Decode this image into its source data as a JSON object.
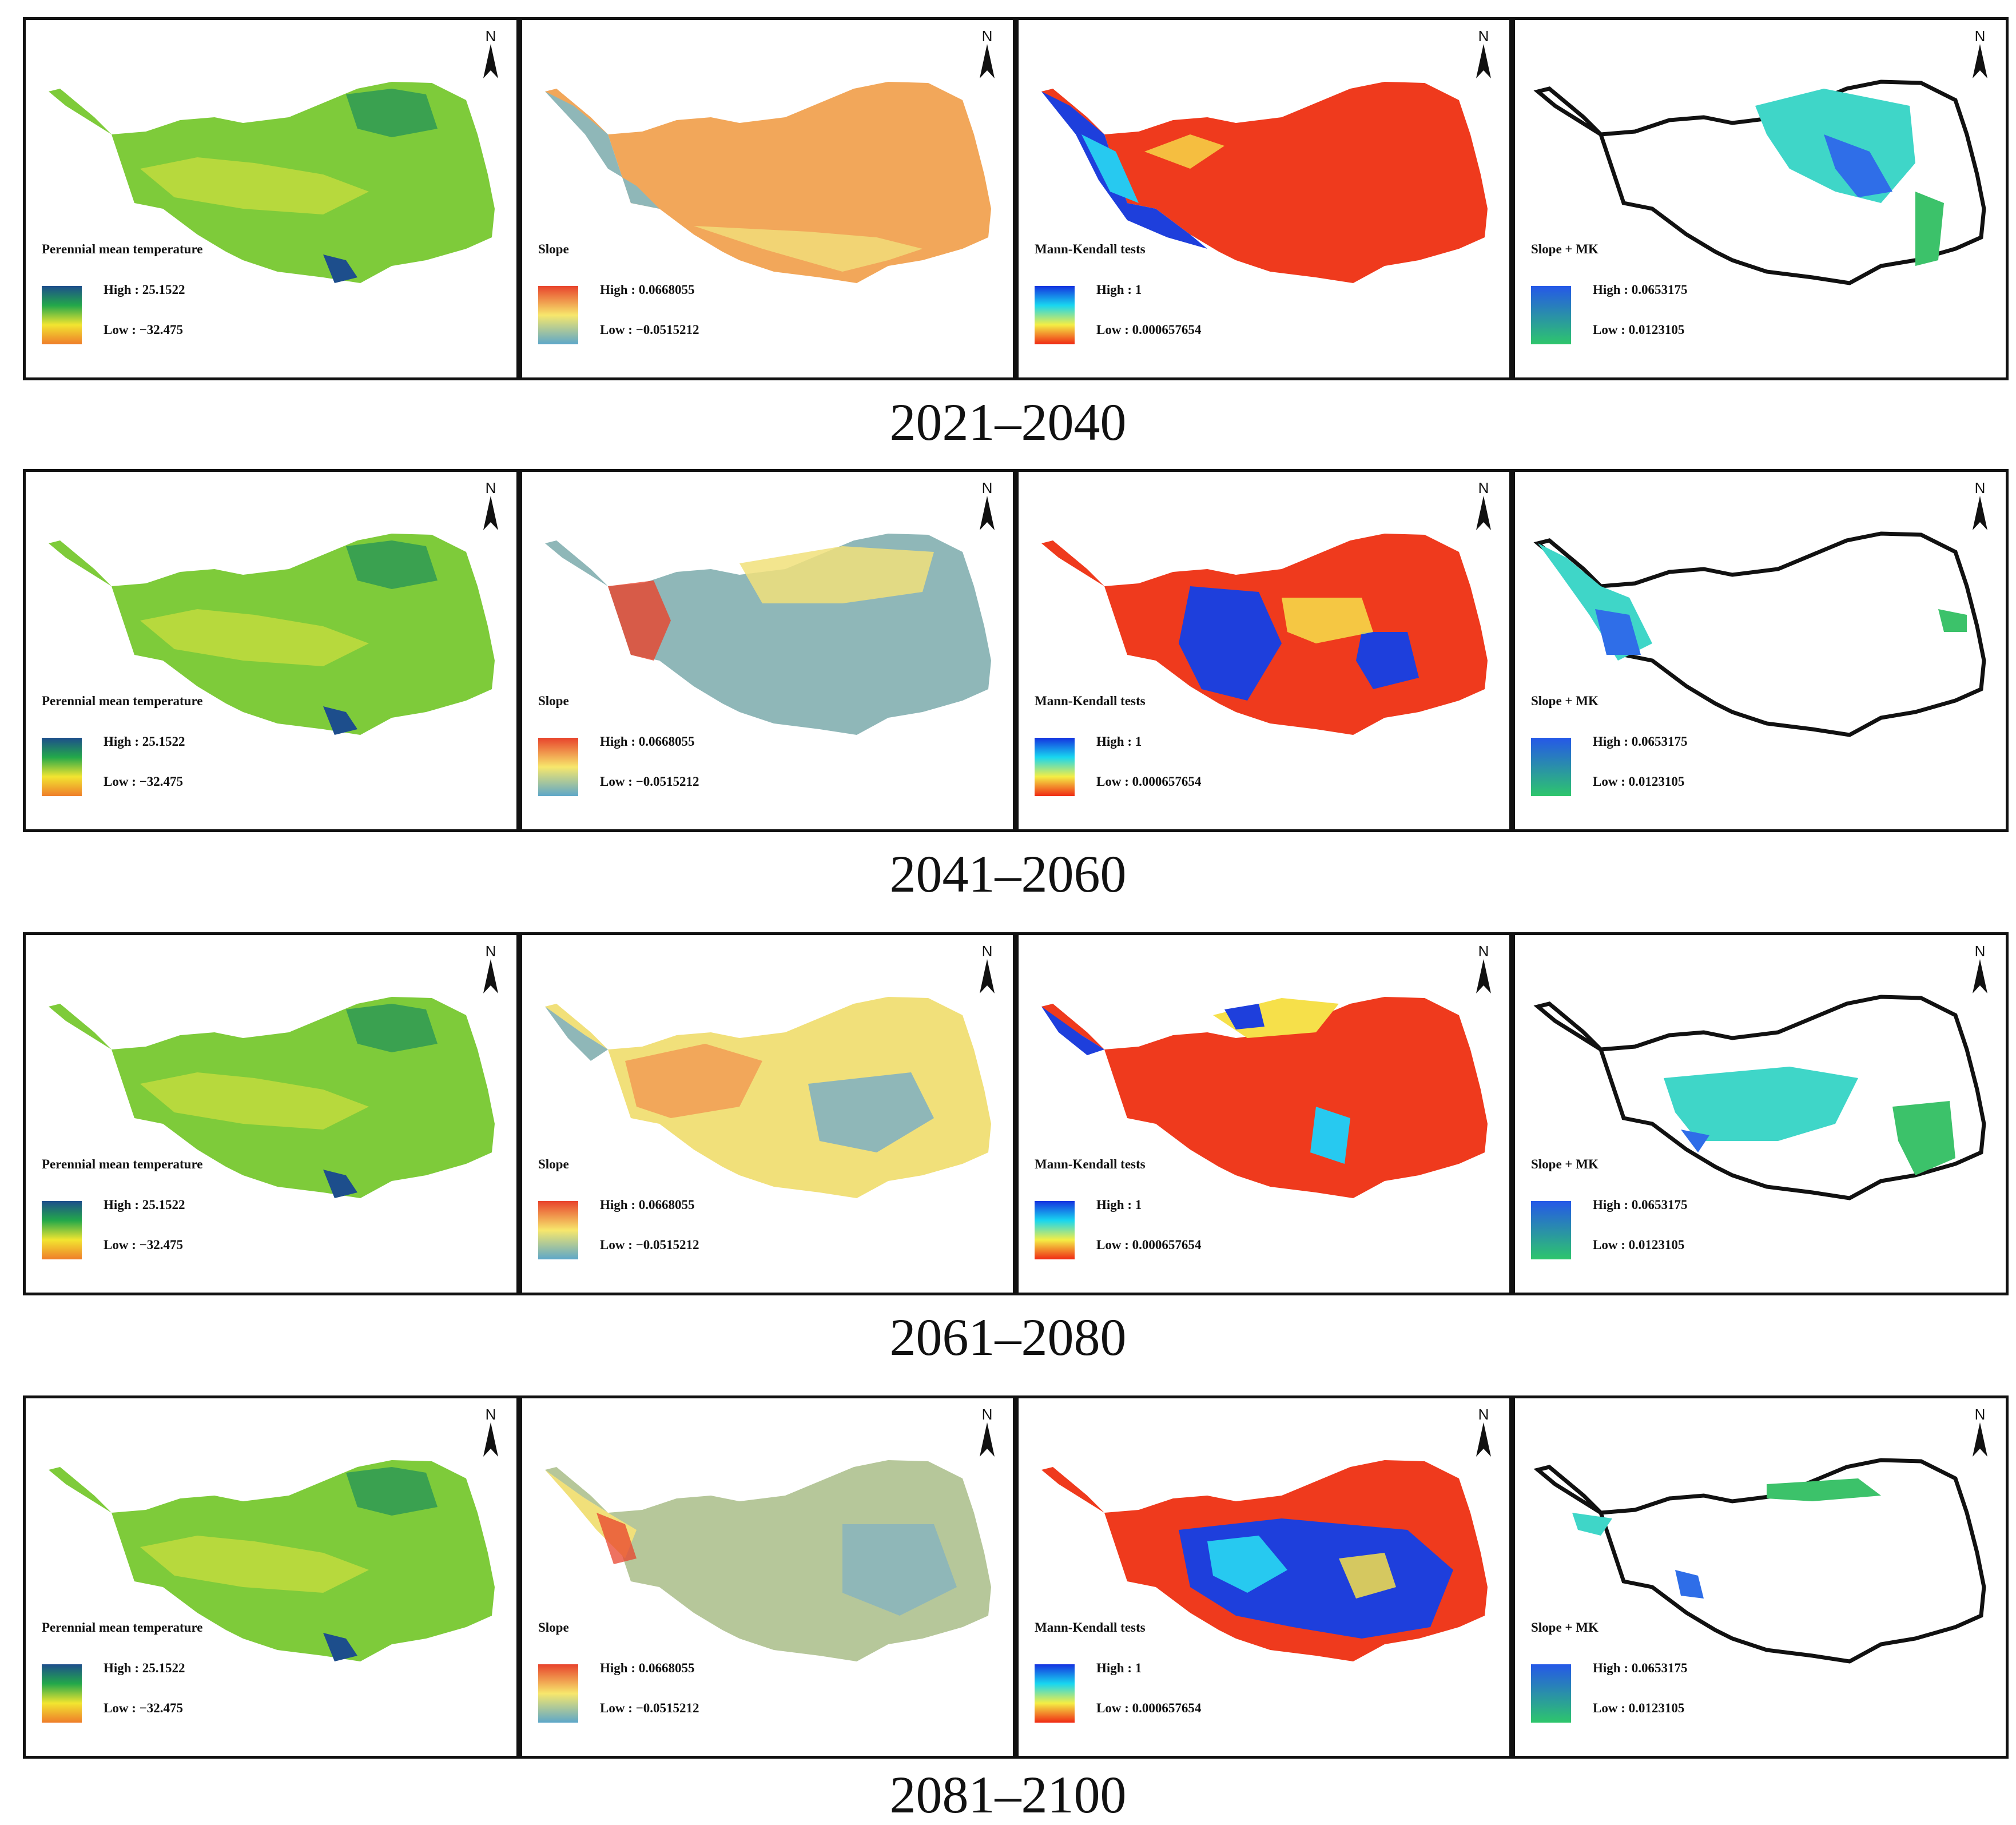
{
  "figure": {
    "north_letter": "N",
    "columns": [
      {
        "key": "temperature",
        "legend_title": "Perennial mean temperature",
        "high": "High : 25.1522",
        "low": "Low : −32.475",
        "ramp": [
          "#1d4e8c",
          "#23a84a",
          "#f2e530",
          "#ef7d2a"
        ]
      },
      {
        "key": "slope",
        "legend_title": "Slope",
        "high": "High : 0.0668055",
        "low": "Low : −0.0515212",
        "ramp": [
          "#e8432c",
          "#f7e76c",
          "#5da7c9"
        ]
      },
      {
        "key": "mk",
        "legend_title": "Mann-Kendall tests",
        "high": "High : 1",
        "low": "Low : 0.000657654",
        "ramp": [
          "#1432e0",
          "#18d6f0",
          "#f4ee45",
          "#f02a14"
        ]
      },
      {
        "key": "slopemk",
        "legend_title": "Slope + MK",
        "high": "High : 0.0653175",
        "low": "Low : 0.0123105",
        "ramp": [
          "#2558e8",
          "#2ec66c"
        ]
      }
    ],
    "periods": [
      {
        "label": "2021–2040"
      },
      {
        "label": "2041–2060"
      },
      {
        "label": "2061–2080"
      },
      {
        "label": "2081–2100"
      }
    ],
    "colors": {
      "temp_base": "#7ecb3a",
      "temp_dark": "#2e9a55",
      "temp_yellow": "#e6e640",
      "slope_orange": "#f2a75a",
      "slope_yellow": "#f1e07a",
      "slope_blue": "#8fb7b8",
      "mk_red": "#ef3a1d",
      "mk_yellow": "#f6e04a",
      "mk_blue": "#1e3fdc",
      "mk_cyan": "#27c9f0",
      "smk_cyan": "#3fd6c8",
      "smk_blue": "#2f6ee8",
      "smk_green": "#3cc26a"
    }
  }
}
